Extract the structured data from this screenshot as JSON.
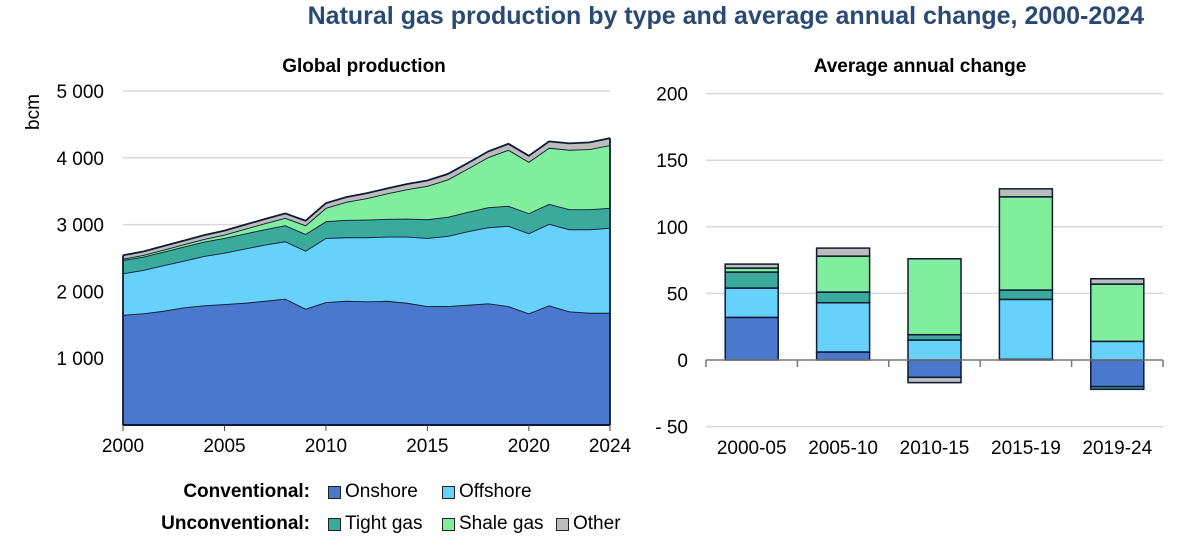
{
  "title": "Natural gas production by type and average annual change, 2000-2024",
  "colors": {
    "Onshore": "#4a78cc",
    "Offshore": "#66d1fa",
    "Tight gas": "#3aaa9c",
    "Shale gas": "#80ee9c",
    "Other": "#bcbcbc"
  },
  "legend": {
    "conventional_label": "Conventional:",
    "unconventional_label": "Unconventional:",
    "conventional": [
      "Onshore",
      "Offshore"
    ],
    "unconventional": [
      "Tight gas",
      "Shale gas",
      "Other"
    ]
  },
  "chart_data": [
    {
      "type": "area",
      "title": "Global production",
      "ylabel": "bcm",
      "xlabel": "",
      "ylim": [
        0,
        5000
      ],
      "yticks": [
        1000,
        2000,
        3000,
        4000,
        5000
      ],
      "ytick_labels": [
        "1 000",
        "2 000",
        "3 000",
        "4 000",
        "5 000"
      ],
      "xticks": [
        2000,
        2005,
        2010,
        2015,
        2020,
        2024
      ],
      "grid": true,
      "stacked": true,
      "x": [
        2000,
        2001,
        2002,
        2003,
        2004,
        2005,
        2006,
        2007,
        2008,
        2009,
        2010,
        2011,
        2012,
        2013,
        2014,
        2015,
        2016,
        2017,
        2018,
        2019,
        2020,
        2021,
        2022,
        2023,
        2024
      ],
      "series": [
        {
          "name": "Onshore",
          "values": [
            1650,
            1670,
            1710,
            1760,
            1790,
            1810,
            1830,
            1860,
            1890,
            1740,
            1840,
            1860,
            1850,
            1860,
            1830,
            1780,
            1780,
            1800,
            1820,
            1780,
            1670,
            1790,
            1700,
            1680,
            1680
          ]
        },
        {
          "name": "Offshore",
          "values": [
            620,
            650,
            680,
            700,
            740,
            770,
            810,
            840,
            860,
            870,
            960,
            950,
            960,
            960,
            990,
            1020,
            1050,
            1100,
            1140,
            1200,
            1200,
            1220,
            1230,
            1250,
            1270
          ]
        },
        {
          "name": "Tight gas",
          "values": [
            200,
            200,
            205,
            210,
            215,
            220,
            225,
            230,
            240,
            250,
            250,
            260,
            265,
            265,
            270,
            280,
            285,
            290,
            300,
            300,
            300,
            300,
            300,
            300,
            300
          ]
        },
        {
          "name": "Shale gas",
          "values": [
            20,
            25,
            30,
            35,
            40,
            50,
            70,
            90,
            110,
            130,
            200,
            270,
            320,
            380,
            440,
            500,
            560,
            650,
            750,
            840,
            770,
            840,
            890,
            900,
            940
          ]
        },
        {
          "name": "Other",
          "values": [
            50,
            52,
            55,
            56,
            58,
            60,
            62,
            64,
            68,
            68,
            70,
            72,
            74,
            76,
            78,
            80,
            82,
            84,
            86,
            90,
            90,
            95,
            95,
            100,
            105
          ]
        }
      ]
    },
    {
      "type": "bar",
      "stacked": true,
      "title": "Average annual change",
      "xlabel": "",
      "ylabel": "",
      "ylim": [
        -50,
        200
      ],
      "yticks": [
        -50,
        0,
        50,
        100,
        150,
        200
      ],
      "ytick_labels": [
        "- 50",
        "0",
        "50",
        "100",
        "150",
        "200"
      ],
      "grid": true,
      "categories": [
        "2000-05",
        "2005-10",
        "2010-15",
        "2015-19",
        "2019-24"
      ],
      "series": [
        {
          "name": "Onshore",
          "values": [
            32,
            6,
            -13,
            0.5,
            -20
          ]
        },
        {
          "name": "Offshore",
          "values": [
            22,
            37,
            15,
            45,
            14
          ]
        },
        {
          "name": "Tight gas",
          "values": [
            12,
            8,
            4,
            7,
            -2
          ]
        },
        {
          "name": "Shale gas",
          "values": [
            3,
            27,
            57,
            70,
            43
          ]
        },
        {
          "name": "Other",
          "values": [
            3,
            6,
            -4,
            6,
            4
          ]
        }
      ]
    }
  ]
}
